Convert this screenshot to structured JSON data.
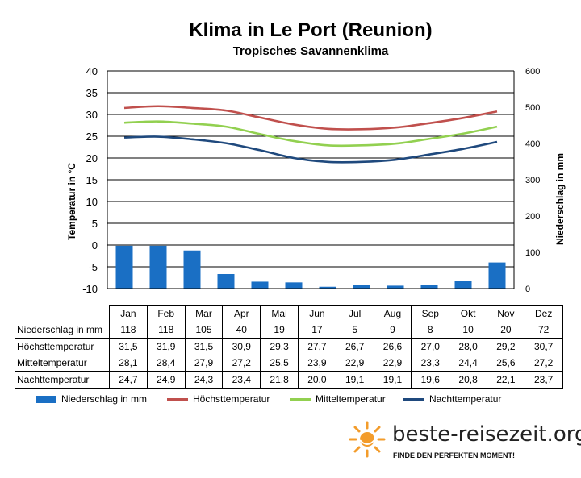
{
  "colors": {
    "precip": "#1a6fc4",
    "high": "#c0504d",
    "mean": "#92d050",
    "night": "#1f497d",
    "brand_orange": "#f39c2b"
  },
  "brand": {
    "logo_icon": "sun-icon",
    "name": "beste-reisezeit.org",
    "slogan": "FINDE DEN PERFEKTEN MOMENT!"
  },
  "chart_data": {
    "type": "bar+line",
    "title": "Klima in Le Port (Reunion)",
    "subtitle": "Tropisches Savannenklima",
    "categories": [
      "Jan",
      "Feb",
      "Mar",
      "Apr",
      "Mai",
      "Jun",
      "Jul",
      "Aug",
      "Sep",
      "Okt",
      "Nov",
      "Dez"
    ],
    "ylabel_left": "Temperatur in °C",
    "ylabel_right": "Niederschlag in mm",
    "ylim_left": [
      -10,
      40
    ],
    "yticks_left": [
      "40",
      "35",
      "30",
      "25",
      "20",
      "15",
      "10",
      "5",
      "0",
      "-5",
      "-10"
    ],
    "ylim_right": [
      0,
      600
    ],
    "yticks_right": [
      "600",
      "500",
      "400",
      "300",
      "200",
      "100",
      "0"
    ],
    "grid": "horizontal",
    "legend_position": "bottom",
    "series": [
      {
        "name": "Niederschlag in mm",
        "type": "bar",
        "axis": "right",
        "values": [
          118,
          118,
          105,
          40,
          19,
          17,
          5,
          9,
          8,
          10,
          20,
          72
        ],
        "labels": [
          "118",
          "118",
          "105",
          "40",
          "19",
          "17",
          "5",
          "9",
          "8",
          "10",
          "20",
          "72"
        ]
      },
      {
        "name": "Höchsttemperatur",
        "type": "line",
        "axis": "left",
        "values": [
          31.5,
          31.9,
          31.5,
          30.9,
          29.3,
          27.7,
          26.7,
          26.6,
          27.0,
          28.0,
          29.2,
          30.7
        ],
        "labels": [
          "31,5",
          "31,9",
          "31,5",
          "30,9",
          "29,3",
          "27,7",
          "26,7",
          "26,6",
          "27,0",
          "28,0",
          "29,2",
          "30,7"
        ]
      },
      {
        "name": "Mitteltemperatur",
        "type": "line",
        "axis": "left",
        "values": [
          28.1,
          28.4,
          27.9,
          27.2,
          25.5,
          23.9,
          22.9,
          22.9,
          23.3,
          24.4,
          25.6,
          27.2
        ],
        "labels": [
          "28,1",
          "28,4",
          "27,9",
          "27,2",
          "25,5",
          "23,9",
          "22,9",
          "22,9",
          "23,3",
          "24,4",
          "25,6",
          "27,2"
        ]
      },
      {
        "name": "Nachttemperatur",
        "type": "line",
        "axis": "left",
        "values": [
          24.7,
          24.9,
          24.3,
          23.4,
          21.8,
          20.0,
          19.1,
          19.1,
          19.6,
          20.8,
          22.1,
          23.7
        ],
        "labels": [
          "24,7",
          "24,9",
          "24,3",
          "23,4",
          "21,8",
          "20,0",
          "19,1",
          "19,1",
          "19,6",
          "20,8",
          "22,1",
          "23,7"
        ]
      }
    ]
  }
}
